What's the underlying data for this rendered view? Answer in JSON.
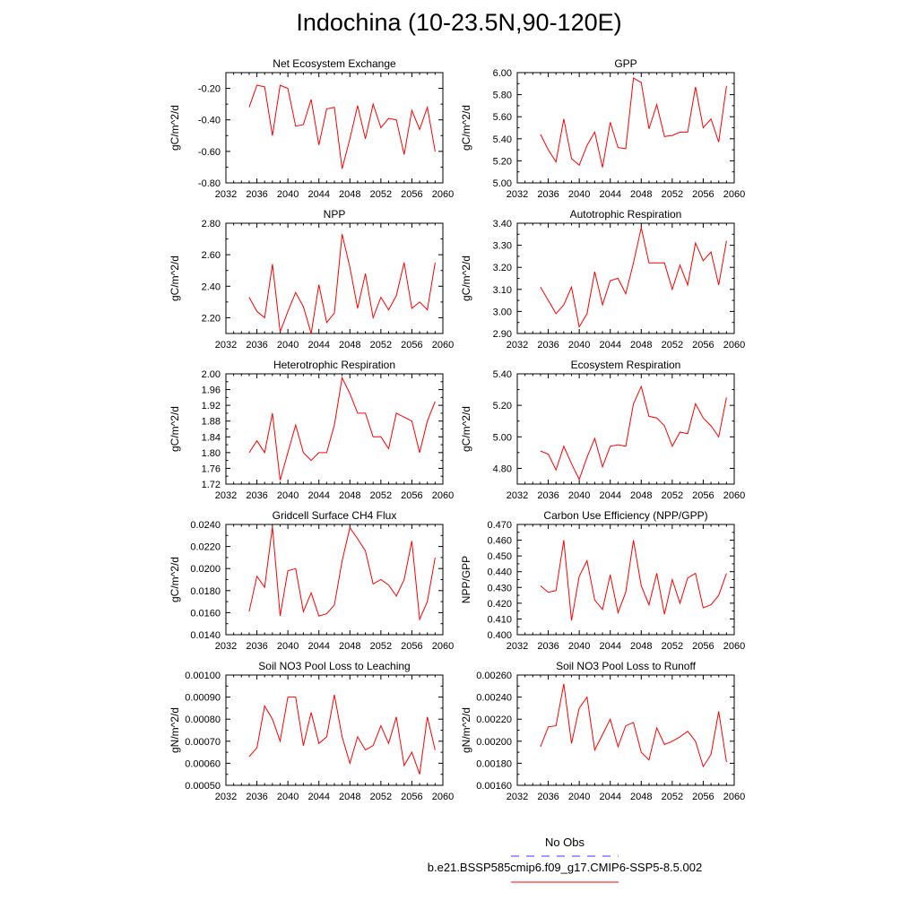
{
  "page": {
    "title": "Indochina (10-23.5N,90-120E)"
  },
  "legend": {
    "obs_label": "No Obs",
    "obs_color": "#3b3bff",
    "run_label": "b.e21.BSSP585cmip6.f09_g17.CMIP6-SSP5-8.5.002",
    "run_color": "#ff0000"
  },
  "chart_data": [
    {
      "type": "line",
      "title": "Net Ecosystem Exchange",
      "ylabel": "gC/m^2/d",
      "xlim": [
        2032,
        2060
      ],
      "ylim": [
        -0.8,
        -0.1
      ],
      "xticks": [
        2032,
        2036,
        2040,
        2044,
        2048,
        2052,
        2056,
        2060
      ],
      "yticks": [
        -0.8,
        -0.6,
        -0.4,
        -0.2
      ],
      "ytick_labels": [
        "-0.80",
        "-0.60",
        "-0.40",
        "-0.20"
      ],
      "x": [
        2035,
        2036,
        2037,
        2038,
        2039,
        2040,
        2041,
        2042,
        2043,
        2044,
        2045,
        2046,
        2047,
        2048,
        2049,
        2050,
        2051,
        2052,
        2053,
        2054,
        2055,
        2056,
        2057,
        2058,
        2059
      ],
      "values": [
        -0.32,
        -0.18,
        -0.19,
        -0.5,
        -0.18,
        -0.2,
        -0.44,
        -0.43,
        -0.27,
        -0.56,
        -0.33,
        -0.32,
        -0.71,
        -0.52,
        -0.31,
        -0.52,
        -0.3,
        -0.45,
        -0.39,
        -0.4,
        -0.62,
        -0.34,
        -0.46,
        -0.32,
        -0.6
      ]
    },
    {
      "type": "line",
      "title": "GPP",
      "ylabel": "gC/m^2/d",
      "xlim": [
        2032,
        2060
      ],
      "ylim": [
        5.0,
        6.0
      ],
      "xticks": [
        2032,
        2036,
        2040,
        2044,
        2048,
        2052,
        2056,
        2060
      ],
      "yticks": [
        5.0,
        5.2,
        5.4,
        5.6,
        5.8,
        6.0
      ],
      "ytick_labels": [
        "5.00",
        "5.20",
        "5.40",
        "5.60",
        "5.80",
        "6.00"
      ],
      "x": [
        2035,
        2036,
        2037,
        2038,
        2039,
        2040,
        2041,
        2042,
        2043,
        2044,
        2045,
        2046,
        2047,
        2048,
        2049,
        2050,
        2051,
        2052,
        2053,
        2054,
        2055,
        2056,
        2057,
        2058,
        2059
      ],
      "values": [
        5.44,
        5.3,
        5.19,
        5.58,
        5.22,
        5.16,
        5.34,
        5.46,
        5.14,
        5.55,
        5.32,
        5.31,
        5.95,
        5.91,
        5.49,
        5.71,
        5.42,
        5.43,
        5.46,
        5.46,
        5.87,
        5.5,
        5.58,
        5.37,
        5.88
      ]
    },
    {
      "type": "line",
      "title": "NPP",
      "ylabel": "gC/m^2/d",
      "xlim": [
        2032,
        2060
      ],
      "ylim": [
        2.1,
        2.8
      ],
      "xticks": [
        2032,
        2036,
        2040,
        2044,
        2048,
        2052,
        2056,
        2060
      ],
      "yticks": [
        2.2,
        2.4,
        2.6,
        2.8
      ],
      "ytick_labels": [
        "2.20",
        "2.40",
        "2.60",
        "2.80"
      ],
      "x": [
        2035,
        2036,
        2037,
        2038,
        2039,
        2040,
        2041,
        2042,
        2043,
        2044,
        2045,
        2046,
        2047,
        2048,
        2049,
        2050,
        2051,
        2052,
        2053,
        2054,
        2055,
        2056,
        2057,
        2058,
        2059
      ],
      "values": [
        2.33,
        2.24,
        2.2,
        2.54,
        2.11,
        2.24,
        2.36,
        2.27,
        2.1,
        2.41,
        2.17,
        2.23,
        2.73,
        2.52,
        2.26,
        2.48,
        2.2,
        2.33,
        2.25,
        2.34,
        2.55,
        2.26,
        2.3,
        2.25,
        2.55
      ]
    },
    {
      "type": "line",
      "title": "Autotrophic Respiration",
      "ylabel": "gC/m^2/d",
      "xlim": [
        2032,
        2060
      ],
      "ylim": [
        2.9,
        3.4
      ],
      "xticks": [
        2032,
        2036,
        2040,
        2044,
        2048,
        2052,
        2056,
        2060
      ],
      "yticks": [
        2.9,
        3.0,
        3.1,
        3.2,
        3.3,
        3.4
      ],
      "ytick_labels": [
        "2.90",
        "3.00",
        "3.10",
        "3.20",
        "3.30",
        "3.40"
      ],
      "x": [
        2035,
        2036,
        2037,
        2038,
        2039,
        2040,
        2041,
        2042,
        2043,
        2044,
        2045,
        2046,
        2047,
        2048,
        2049,
        2050,
        2051,
        2052,
        2053,
        2054,
        2055,
        2056,
        2057,
        2058,
        2059
      ],
      "values": [
        3.11,
        3.05,
        2.99,
        3.03,
        3.11,
        2.93,
        2.99,
        3.18,
        3.03,
        3.14,
        3.15,
        3.08,
        3.22,
        3.38,
        3.22,
        3.22,
        3.22,
        3.1,
        3.21,
        3.12,
        3.31,
        3.23,
        3.27,
        3.12,
        3.32
      ]
    },
    {
      "type": "line",
      "title": "Heterotrophic Respiration",
      "ylabel": "gC/m^2/d",
      "xlim": [
        2032,
        2060
      ],
      "ylim": [
        1.72,
        2.0
      ],
      "xticks": [
        2032,
        2036,
        2040,
        2044,
        2048,
        2052,
        2056,
        2060
      ],
      "yticks": [
        1.72,
        1.76,
        1.8,
        1.84,
        1.88,
        1.92,
        1.96,
        2.0
      ],
      "ytick_labels": [
        "1.72",
        "1.76",
        "1.80",
        "1.84",
        "1.88",
        "1.92",
        "1.96",
        "2.00"
      ],
      "x": [
        2035,
        2036,
        2037,
        2038,
        2039,
        2040,
        2041,
        2042,
        2043,
        2044,
        2045,
        2046,
        2047,
        2048,
        2049,
        2050,
        2051,
        2052,
        2053,
        2054,
        2055,
        2056,
        2057,
        2058,
        2059
      ],
      "values": [
        1.8,
        1.83,
        1.8,
        1.9,
        1.73,
        1.8,
        1.87,
        1.8,
        1.78,
        1.8,
        1.8,
        1.87,
        1.99,
        1.95,
        1.9,
        1.9,
        1.84,
        1.84,
        1.81,
        1.9,
        1.89,
        1.88,
        1.8,
        1.88,
        1.93
      ]
    },
    {
      "type": "line",
      "title": "Ecosystem Respiration",
      "ylabel": "gC/m^2/d",
      "xlim": [
        2032,
        2060
      ],
      "ylim": [
        4.7,
        5.4
      ],
      "xticks": [
        2032,
        2036,
        2040,
        2044,
        2048,
        2052,
        2056,
        2060
      ],
      "yticks": [
        4.8,
        5.0,
        5.2,
        5.4
      ],
      "ytick_labels": [
        "4.80",
        "5.00",
        "5.20",
        "5.40"
      ],
      "x": [
        2035,
        2036,
        2037,
        2038,
        2039,
        2040,
        2041,
        2042,
        2043,
        2044,
        2045,
        2046,
        2047,
        2048,
        2049,
        2050,
        2051,
        2052,
        2053,
        2054,
        2055,
        2056,
        2057,
        2058,
        2059
      ],
      "values": [
        4.91,
        4.89,
        4.79,
        4.94,
        4.83,
        4.73,
        4.87,
        4.99,
        4.81,
        4.94,
        4.95,
        4.94,
        5.21,
        5.32,
        5.13,
        5.12,
        5.07,
        4.94,
        5.03,
        5.02,
        5.21,
        5.12,
        5.07,
        5.0,
        5.25
      ]
    },
    {
      "type": "line",
      "title": "Gridcell Surface CH4 Flux",
      "ylabel": "gC/m^2/d",
      "xlim": [
        2032,
        2060
      ],
      "ylim": [
        0.014,
        0.024
      ],
      "xticks": [
        2032,
        2036,
        2040,
        2044,
        2048,
        2052,
        2056,
        2060
      ],
      "yticks": [
        0.014,
        0.016,
        0.018,
        0.02,
        0.022,
        0.024
      ],
      "ytick_labels": [
        "0.0140",
        "0.0160",
        "0.0180",
        "0.0200",
        "0.0220",
        "0.0240"
      ],
      "x": [
        2035,
        2036,
        2037,
        2038,
        2039,
        2040,
        2041,
        2042,
        2043,
        2044,
        2045,
        2046,
        2047,
        2048,
        2049,
        2050,
        2051,
        2052,
        2053,
        2054,
        2055,
        2056,
        2057,
        2058,
        2059
      ],
      "values": [
        0.0161,
        0.0193,
        0.0183,
        0.0238,
        0.0157,
        0.0198,
        0.02,
        0.0161,
        0.0178,
        0.0157,
        0.0159,
        0.0167,
        0.0207,
        0.0237,
        0.0227,
        0.0216,
        0.0186,
        0.019,
        0.0185,
        0.0175,
        0.019,
        0.0225,
        0.0154,
        0.017,
        0.021
      ]
    },
    {
      "type": "line",
      "title": "Carbon Use Efficiency (NPP/GPP)",
      "ylabel": "NPP/GPP",
      "xlim": [
        2032,
        2060
      ],
      "ylim": [
        0.4,
        0.47
      ],
      "xticks": [
        2032,
        2036,
        2040,
        2044,
        2048,
        2052,
        2056,
        2060
      ],
      "yticks": [
        0.4,
        0.41,
        0.42,
        0.43,
        0.44,
        0.45,
        0.46,
        0.47
      ],
      "ytick_labels": [
        "0.400",
        "0.410",
        "0.420",
        "0.430",
        "0.440",
        "0.450",
        "0.460",
        "0.470"
      ],
      "x": [
        2035,
        2036,
        2037,
        2038,
        2039,
        2040,
        2041,
        2042,
        2043,
        2044,
        2045,
        2046,
        2047,
        2048,
        2049,
        2050,
        2051,
        2052,
        2053,
        2054,
        2055,
        2056,
        2057,
        2058,
        2059
      ],
      "values": [
        0.431,
        0.427,
        0.428,
        0.46,
        0.409,
        0.437,
        0.447,
        0.422,
        0.416,
        0.438,
        0.414,
        0.427,
        0.46,
        0.431,
        0.419,
        0.439,
        0.413,
        0.435,
        0.42,
        0.436,
        0.439,
        0.417,
        0.419,
        0.425,
        0.439
      ]
    },
    {
      "type": "line",
      "title": "Soil NO3 Pool Loss to Leaching",
      "ylabel": "gN/m^2/d",
      "xlim": [
        2032,
        2060
      ],
      "ylim": [
        0.0005,
        0.001
      ],
      "xticks": [
        2032,
        2036,
        2040,
        2044,
        2048,
        2052,
        2056,
        2060
      ],
      "yticks": [
        0.0005,
        0.0006,
        0.0007,
        0.0008,
        0.0009,
        0.001
      ],
      "ytick_labels": [
        "0.00050",
        "0.00060",
        "0.00070",
        "0.00080",
        "0.00090",
        "0.00100"
      ],
      "x": [
        2035,
        2036,
        2037,
        2038,
        2039,
        2040,
        2041,
        2042,
        2043,
        2044,
        2045,
        2046,
        2047,
        2048,
        2049,
        2050,
        2051,
        2052,
        2053,
        2054,
        2055,
        2056,
        2057,
        2058,
        2059
      ],
      "values": [
        0.00063,
        0.00067,
        0.00086,
        0.0008,
        0.0007,
        0.0009,
        0.0009,
        0.00068,
        0.00083,
        0.00069,
        0.00072,
        0.00091,
        0.00072,
        0.0006,
        0.00072,
        0.00066,
        0.00068,
        0.00077,
        0.00069,
        0.00081,
        0.00059,
        0.00065,
        0.00055,
        0.00081,
        0.00066
      ]
    },
    {
      "type": "line",
      "title": "Soil NO3 Pool Loss to Runoff",
      "ylabel": "gN/m^2/d",
      "xlim": [
        2032,
        2060
      ],
      "ylim": [
        0.0016,
        0.0026
      ],
      "xticks": [
        2032,
        2036,
        2040,
        2044,
        2048,
        2052,
        2056,
        2060
      ],
      "yticks": [
        0.0016,
        0.0018,
        0.002,
        0.0022,
        0.0024,
        0.0026
      ],
      "ytick_labels": [
        "0.00160",
        "0.00180",
        "0.00200",
        "0.00220",
        "0.00240",
        "0.00260"
      ],
      "x": [
        2035,
        2036,
        2037,
        2038,
        2039,
        2040,
        2041,
        2042,
        2043,
        2044,
        2045,
        2046,
        2047,
        2048,
        2049,
        2050,
        2051,
        2052,
        2053,
        2054,
        2055,
        2056,
        2057,
        2058,
        2059
      ],
      "values": [
        0.00195,
        0.00213,
        0.00214,
        0.00252,
        0.00198,
        0.0023,
        0.0024,
        0.00192,
        0.00206,
        0.0022,
        0.00195,
        0.00214,
        0.00217,
        0.0019,
        0.00183,
        0.00212,
        0.00197,
        0.002,
        0.00204,
        0.00209,
        0.002,
        0.00177,
        0.00188,
        0.00227,
        0.00181
      ]
    }
  ]
}
